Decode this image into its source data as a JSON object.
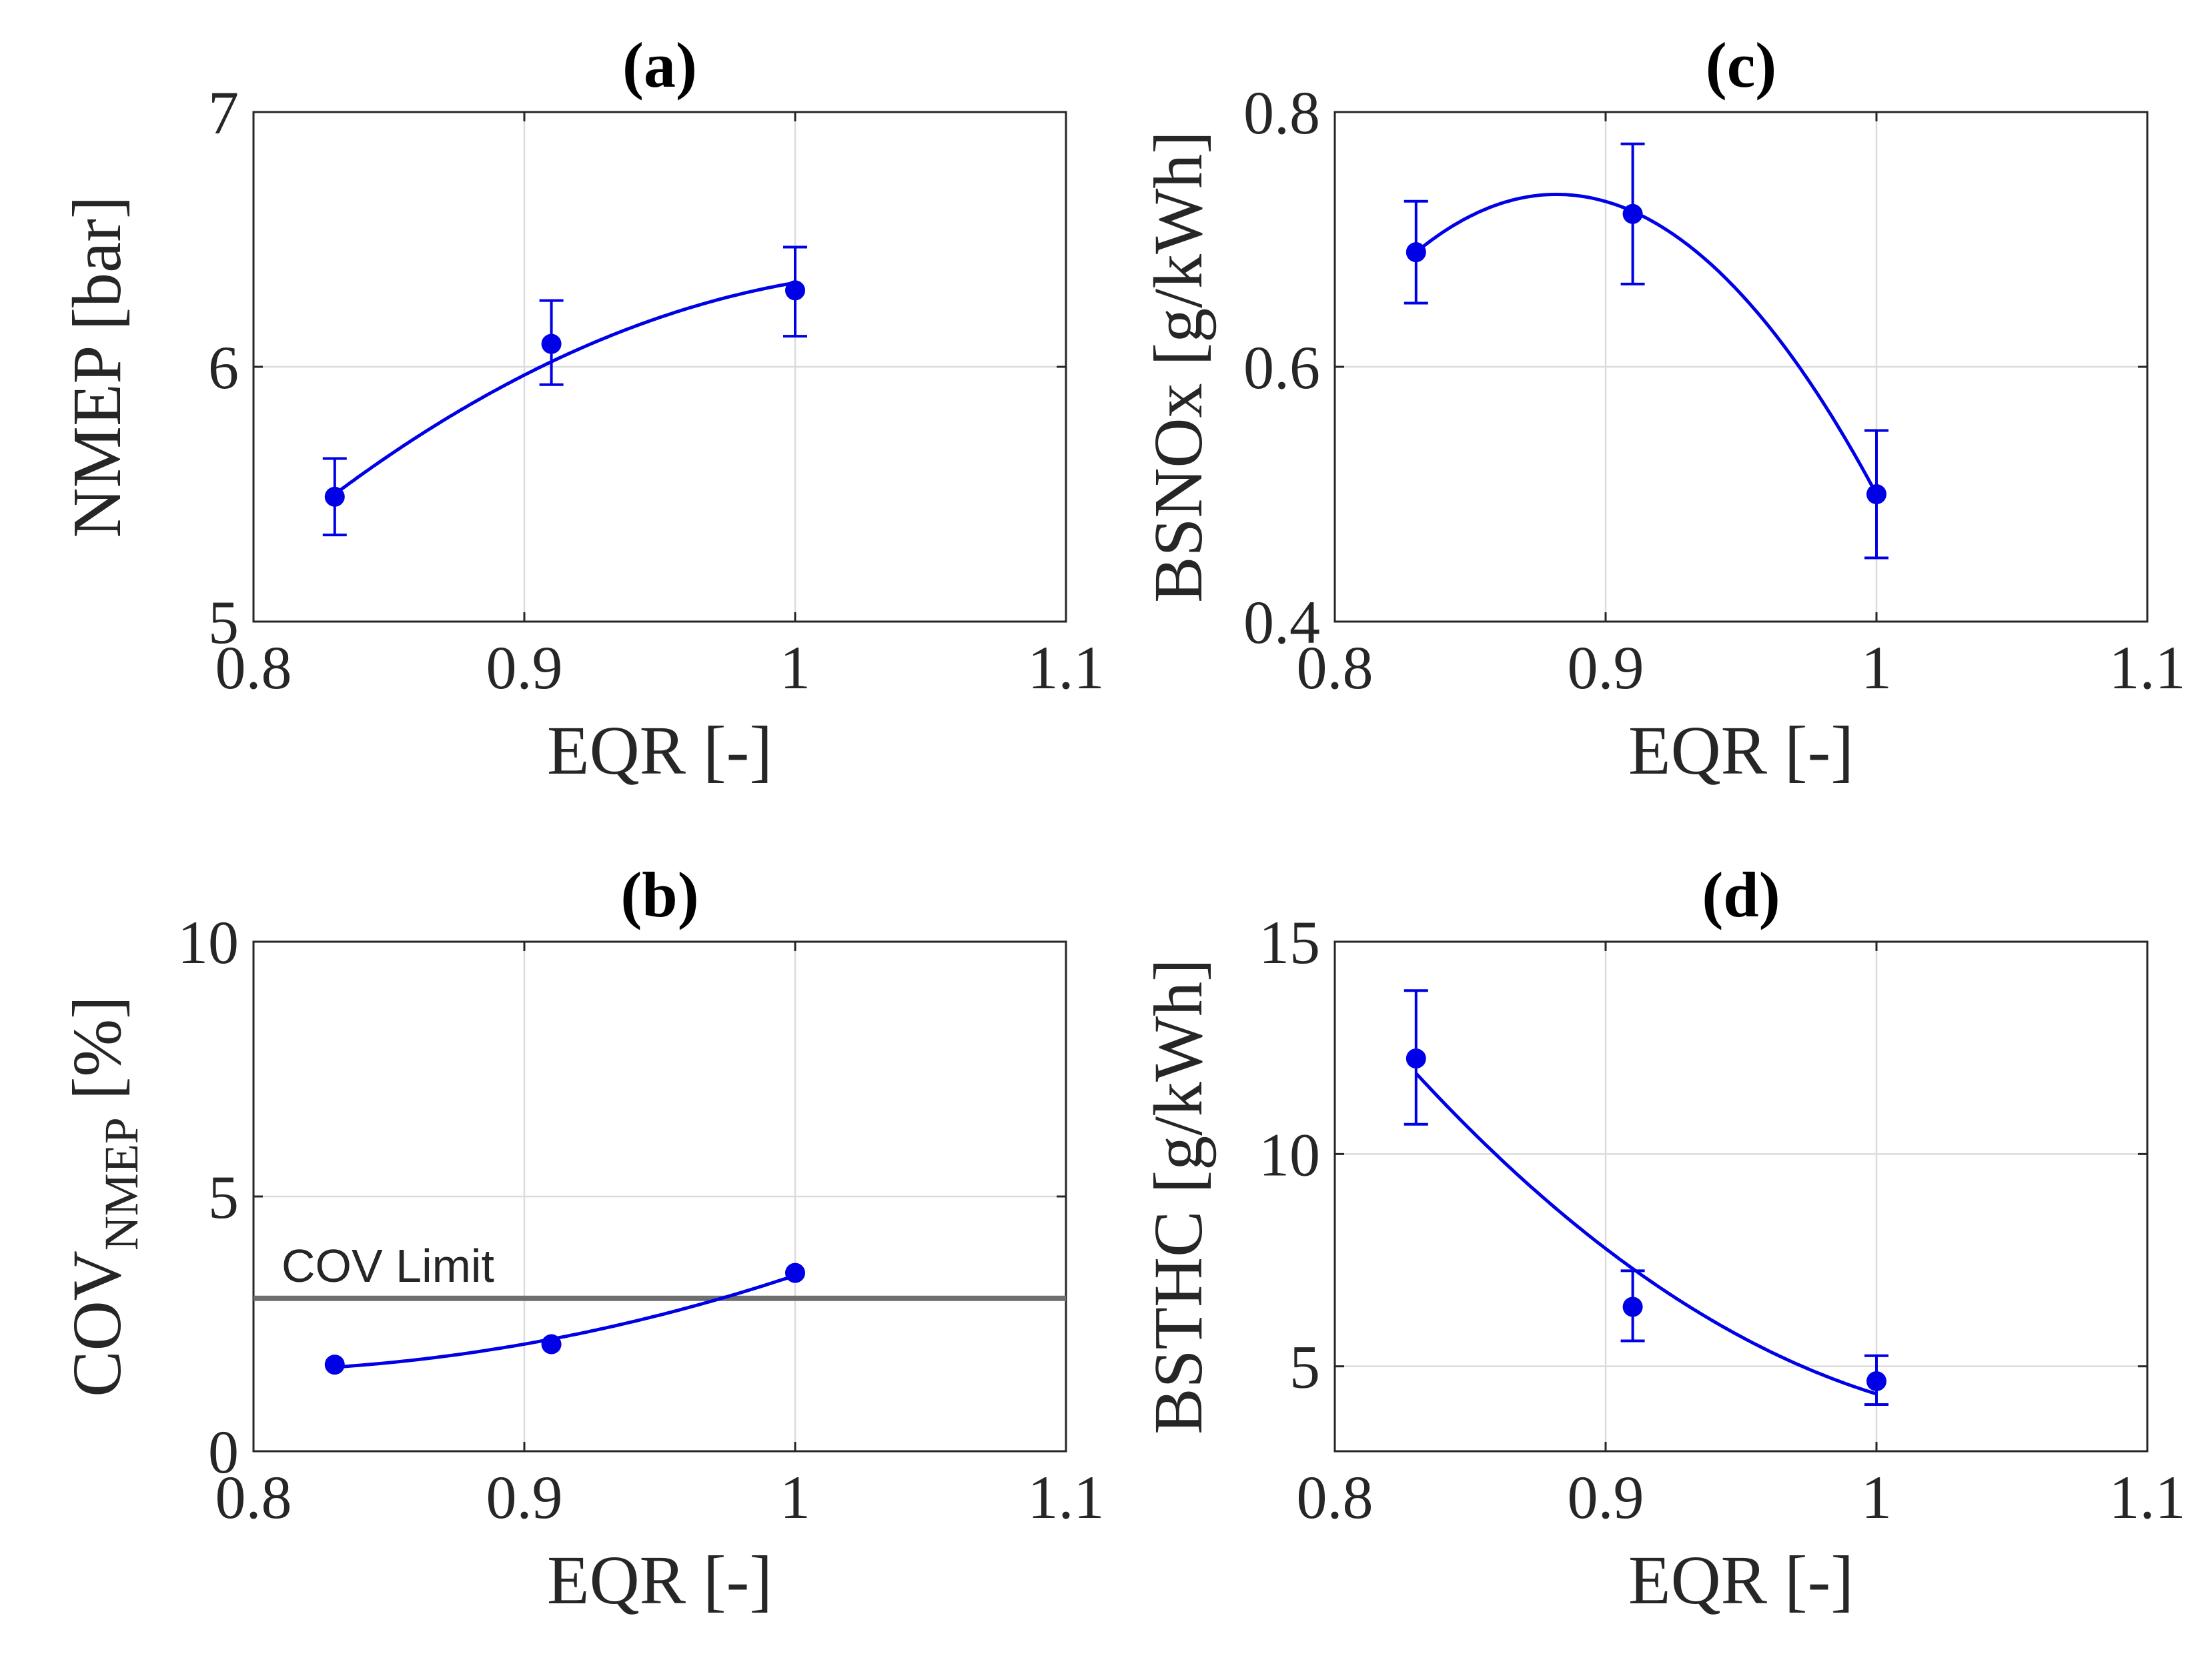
{
  "colors": {
    "series": "#0000e6",
    "limit": "#6e6e6e"
  },
  "chart_data": [
    {
      "id": "a",
      "type": "scatter",
      "title": "(a)",
      "xlabel": "EQR [-]",
      "ylabel": "NMEP [bar]",
      "xlim": [
        0.8,
        1.1
      ],
      "ylim": [
        5,
        7
      ],
      "xticks": [
        "0.8",
        "0.9",
        "1",
        "1.1"
      ],
      "yticks": [
        "5",
        "6",
        "7"
      ],
      "grid": true,
      "points": [
        {
          "x": 0.83,
          "y": 5.49,
          "err_low": 5.34,
          "err_high": 5.64
        },
        {
          "x": 0.91,
          "y": 6.09,
          "err_low": 5.93,
          "err_high": 6.26
        },
        {
          "x": 1.0,
          "y": 6.3,
          "err_low": 6.12,
          "err_high": 6.47
        }
      ],
      "fit": {
        "type": "quadratic",
        "x_range": [
          0.83,
          1.0
        ],
        "through": [
          [
            0.83,
            5.5
          ],
          [
            0.91,
            6.02
          ],
          [
            1.0,
            6.33
          ]
        ]
      }
    },
    {
      "id": "b",
      "type": "scatter",
      "title": "(b)",
      "xlabel": "EQR [-]",
      "ylabel": "COV",
      "ylabel_subscript": "NMEP",
      "ylabel_suffix": " [%]",
      "xlim": [
        0.8,
        1.1
      ],
      "ylim": [
        0,
        10
      ],
      "xticks": [
        "0.8",
        "0.9",
        "1",
        "1.1"
      ],
      "yticks": [
        "0",
        "5",
        "10"
      ],
      "grid": true,
      "points": [
        {
          "x": 0.83,
          "y": 1.7
        },
        {
          "x": 0.91,
          "y": 2.1
        },
        {
          "x": 1.0,
          "y": 3.5
        }
      ],
      "fit": {
        "type": "quadratic",
        "x_range": [
          0.83,
          1.0
        ],
        "through": [
          [
            0.83,
            1.65
          ],
          [
            0.91,
            2.2
          ],
          [
            1.0,
            3.45
          ]
        ]
      },
      "reference_line": {
        "y": 3.0,
        "label": "COV Limit"
      }
    },
    {
      "id": "c",
      "type": "scatter",
      "title": "(c)",
      "xlabel": "EQR [-]",
      "ylabel": "BSNOx [g/kWh]",
      "xlim": [
        0.8,
        1.1
      ],
      "ylim": [
        0.4,
        0.8
      ],
      "xticks": [
        "0.8",
        "0.9",
        "1",
        "1.1"
      ],
      "yticks": [
        "0.4",
        "0.6",
        "0.8"
      ],
      "grid": true,
      "points": [
        {
          "x": 0.83,
          "y": 0.69,
          "err_low": 0.65,
          "err_high": 0.73
        },
        {
          "x": 0.91,
          "y": 0.72,
          "err_low": 0.665,
          "err_high": 0.775
        },
        {
          "x": 1.0,
          "y": 0.5,
          "err_low": 0.45,
          "err_high": 0.55
        }
      ],
      "fit": {
        "type": "quadratic",
        "x_range": [
          0.83,
          1.0
        ],
        "through": [
          [
            0.83,
            0.69
          ],
          [
            0.91,
            0.722
          ],
          [
            1.0,
            0.5
          ]
        ]
      }
    },
    {
      "id": "d",
      "type": "scatter",
      "title": "(d)",
      "xlabel": "EQR [-]",
      "ylabel": "BSTHC [g/kWh]",
      "xlim": [
        0.8,
        1.1
      ],
      "ylim": [
        3,
        15
      ],
      "xticks": [
        "0.8",
        "0.9",
        "1",
        "1.1"
      ],
      "yticks": [
        "5",
        "10",
        "15"
      ],
      "grid": true,
      "points": [
        {
          "x": 0.83,
          "y": 12.25,
          "err_low": 10.7,
          "err_high": 13.85
        },
        {
          "x": 0.91,
          "y": 6.4,
          "err_low": 5.6,
          "err_high": 7.25
        },
        {
          "x": 1.0,
          "y": 4.65,
          "err_low": 4.1,
          "err_high": 5.25
        }
      ],
      "fit": {
        "type": "quadratic",
        "x_range": [
          0.83,
          1.0
        ],
        "through": [
          [
            0.83,
            11.9
          ],
          [
            0.91,
            7.3
          ],
          [
            1.0,
            4.35
          ]
        ]
      }
    }
  ]
}
